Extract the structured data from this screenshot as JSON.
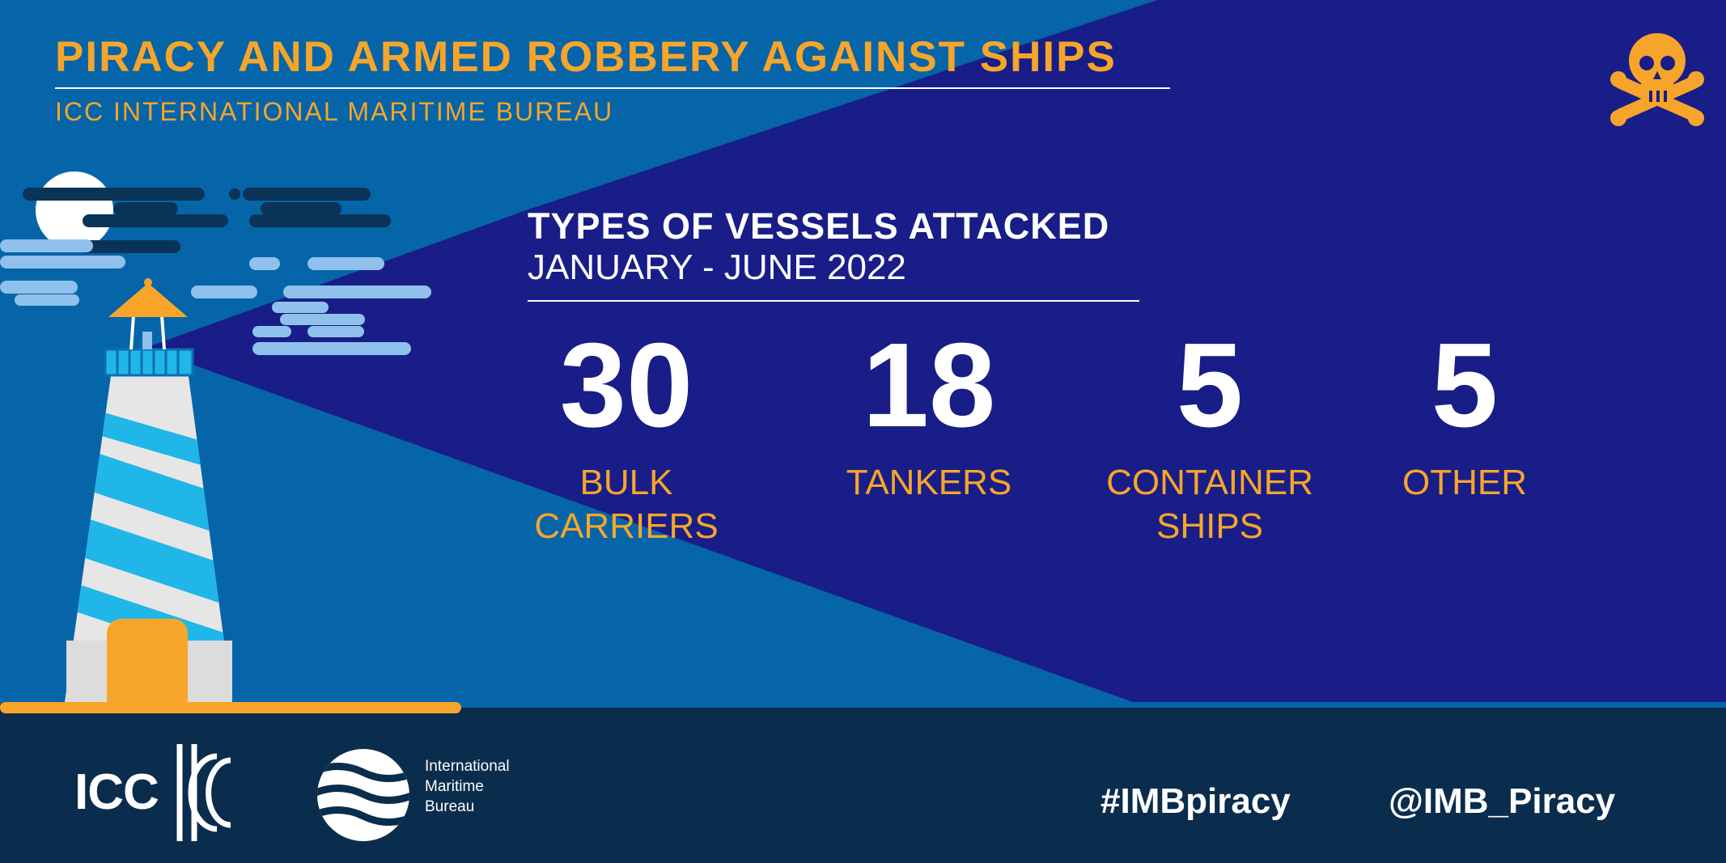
{
  "header": {
    "title": "PIRACY AND ARMED ROBBERY AGAINST SHIPS",
    "subtitle": "ICC INTERNATIONAL MARITIME BUREAU"
  },
  "section": {
    "title": "TYPES OF VESSELS ATTACKED",
    "period": "JANUARY - JUNE 2022"
  },
  "stats": [
    {
      "value": "30",
      "label": "BULK\nCARRIERS"
    },
    {
      "value": "18",
      "label": "TANKERS"
    },
    {
      "value": "5",
      "label": "CONTAINER\nSHIPS"
    },
    {
      "value": "5",
      "label": "OTHER"
    }
  ],
  "footer": {
    "icc_logo": "ICC",
    "imb_lines": [
      "International",
      "Maritime",
      "Bureau"
    ],
    "hashtag": "#IMBpiracy",
    "handle": "@IMB_Piracy"
  },
  "icons": {
    "skull": "skull-crossbones-icon",
    "lighthouse": "lighthouse-illustration",
    "imb_waves": "imb-waves-logo"
  },
  "colors": {
    "accent": "#f7a52a",
    "beam": "#0565a8",
    "panel": "#191d87",
    "footer": "#0b2d4d"
  }
}
